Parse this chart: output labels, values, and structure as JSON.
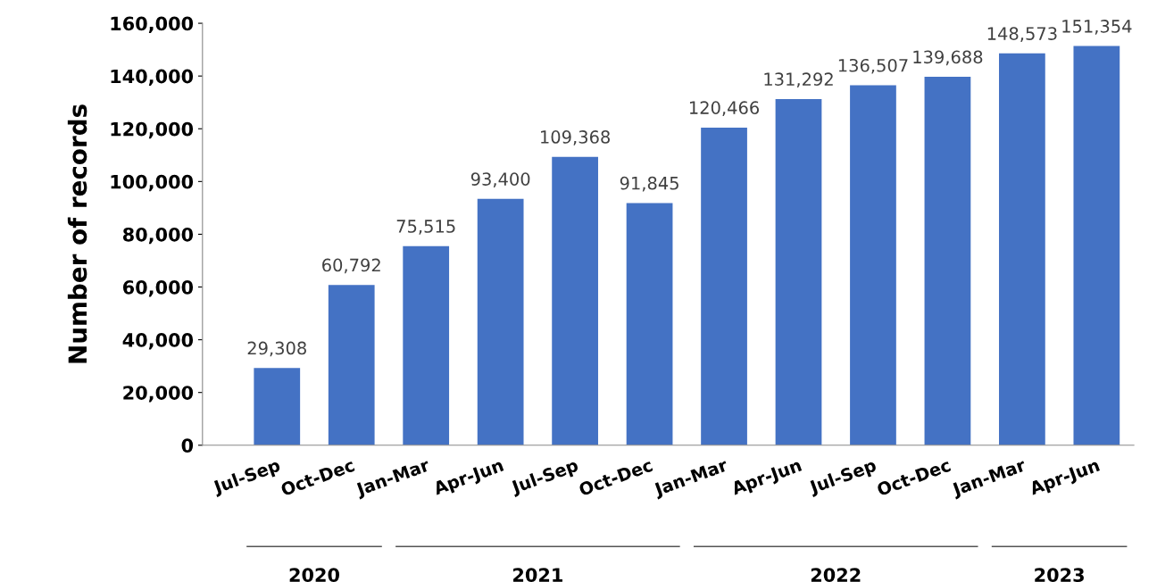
{
  "chart_data": {
    "type": "bar",
    "ylabel": "Number of records",
    "categories": [
      "Jul-Sep",
      "Oct-Dec",
      "Jan-Mar",
      "Apr-Jun",
      "Jul-Sep",
      "Oct-Dec",
      "Jan-Mar",
      "Apr-Jun",
      "Jul-Sep",
      "Oct-Dec",
      "Jan-Mar",
      "Apr-Jun"
    ],
    "values": [
      29308,
      60792,
      75515,
      93400,
      109368,
      91845,
      120466,
      131292,
      136507,
      139688,
      148573,
      151354
    ],
    "value_labels": [
      "29,308",
      "60,792",
      "75,515",
      "93,400",
      "109,368",
      "91,845",
      "120,466",
      "131,292",
      "136,507",
      "139,688",
      "148,573",
      "151,354"
    ],
    "color": "#4472c4",
    "ylim": [
      0,
      160000
    ],
    "yticks": [
      0,
      {
        "value": 20000,
        "label": "20,000"
      },
      {
        "value": 40000,
        "label": "40,000"
      },
      {
        "value": 60000,
        "label": "60,000"
      },
      {
        "value": 80000,
        "label": "80,000"
      },
      {
        "value": 100000,
        "label": "100,000"
      },
      {
        "value": 120000,
        "label": "120,000"
      },
      {
        "value": 140000,
        "label": "140,000"
      },
      {
        "value": 160000,
        "label": "160,000"
      }
    ],
    "grid": false,
    "annotations": [
      "2020",
      "2021",
      "2022",
      "2023"
    ]
  }
}
